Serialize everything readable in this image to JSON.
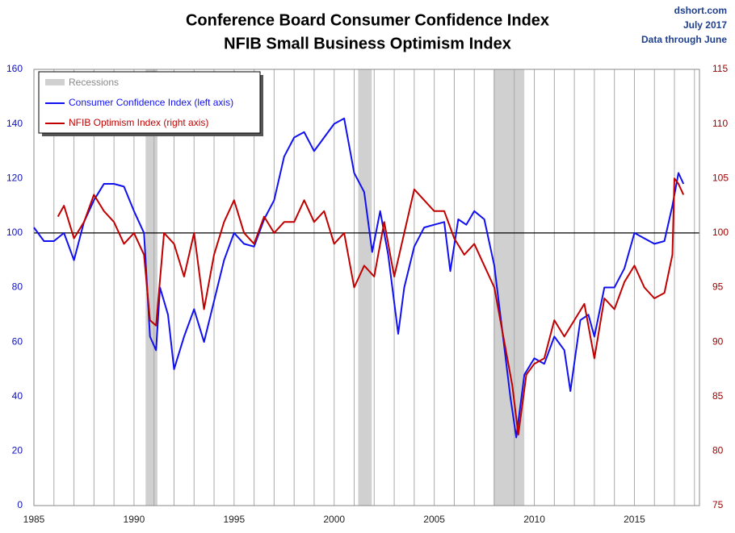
{
  "chart_data": {
    "type": "line",
    "title": "Conference Board Consumer Confidence Index",
    "subtitle": "NFIB Small Business Optimism Index",
    "annotations": [
      "dshort.com",
      "July 2017",
      "Data through June"
    ],
    "xlim": [
      1985,
      2018.25
    ],
    "xticks": [
      1985,
      1990,
      1995,
      2000,
      2005,
      2010,
      2015
    ],
    "xminor": [
      1986,
      1987,
      1988,
      1989,
      1991,
      1992,
      1993,
      1994,
      1996,
      1997,
      1998,
      1999,
      2001,
      2002,
      2003,
      2004,
      2006,
      2007,
      2008,
      2009,
      2011,
      2012,
      2013,
      2014,
      2016,
      2017,
      2018
    ],
    "ylim": [
      0,
      160
    ],
    "yticks": [
      0,
      20,
      40,
      60,
      80,
      100,
      120,
      140,
      160
    ],
    "y2lim": [
      75,
      115
    ],
    "y2ticks": [
      75,
      80,
      85,
      90,
      95,
      100,
      105,
      110,
      115
    ],
    "hline": 100,
    "recession_label": "Recessions",
    "recession_color": "#d0d0d0",
    "recessions": [
      [
        1990.58,
        1991.17
      ],
      [
        2001.2,
        2001.88
      ],
      [
        2007.96,
        2009.5
      ]
    ],
    "legend": "upper left",
    "series": [
      {
        "name": "Consumer Confidence Index (left axis)",
        "color": "#1010f0",
        "x": [
          1985,
          1985.5,
          1986,
          1986.5,
          1987,
          1987.5,
          1988,
          1988.5,
          1989,
          1989.5,
          1990,
          1990.5,
          1990.8,
          1991.1,
          1991.3,
          1991.7,
          1992,
          1992.5,
          1993,
          1993.5,
          1994,
          1994.5,
          1995,
          1995.5,
          1996,
          1996.5,
          1997,
          1997.5,
          1998,
          1998.5,
          1999,
          1999.5,
          2000,
          2000.5,
          2001,
          2001.5,
          2001.9,
          2002.3,
          2002.7,
          2003.2,
          2003.5,
          2004,
          2004.5,
          2005,
          2005.5,
          2005.8,
          2006.2,
          2006.6,
          2007,
          2007.5,
          2008,
          2008.5,
          2008.8,
          2009.1,
          2009.5,
          2010,
          2010.5,
          2011,
          2011.5,
          2011.8,
          2012.3,
          2012.7,
          2013,
          2013.5,
          2014,
          2014.5,
          2015,
          2015.5,
          2016,
          2016.5,
          2016.9,
          2017.2,
          2017.45
        ],
        "values": [
          102,
          97,
          97,
          100,
          90,
          104,
          112,
          118,
          118,
          117,
          108,
          100,
          62,
          57,
          80,
          70,
          50,
          62,
          72,
          60,
          75,
          90,
          100,
          96,
          95,
          105,
          112,
          128,
          135,
          137,
          130,
          135,
          140,
          142,
          122,
          115,
          93,
          108,
          92,
          63,
          80,
          95,
          102,
          103,
          104,
          86,
          105,
          103,
          108,
          105,
          88,
          58,
          40,
          25,
          48,
          54,
          52,
          62,
          57,
          42,
          68,
          70,
          62,
          80,
          80,
          87,
          100,
          98,
          96,
          97,
          110,
          122,
          118
        ]
      },
      {
        "name": "NFIB Optimism Index (right axis)",
        "color": "#c00000",
        "axis": "y2",
        "x": [
          1986.2,
          1986.5,
          1987,
          1987.5,
          1988,
          1988.5,
          1989,
          1989.5,
          1990,
          1990.5,
          1990.8,
          1991.1,
          1991.5,
          1992,
          1992.5,
          1993,
          1993.5,
          1994,
          1994.5,
          1995,
          1995.5,
          1996,
          1996.5,
          1997,
          1997.5,
          1998,
          1998.5,
          1999,
          1999.5,
          2000,
          2000.5,
          2001,
          2001.5,
          2002,
          2002.5,
          2003,
          2003.5,
          2004,
          2004.5,
          2005,
          2005.5,
          2006,
          2006.5,
          2007,
          2007.5,
          2008,
          2008.5,
          2008.9,
          2009.2,
          2009.6,
          2010,
          2010.5,
          2011,
          2011.5,
          2012,
          2012.5,
          2013,
          2013.5,
          2014,
          2014.5,
          2015,
          2015.5,
          2016,
          2016.5,
          2016.9,
          2017,
          2017.2,
          2017.45
        ],
        "values": [
          101.5,
          102.5,
          99.5,
          101,
          103.5,
          102,
          101,
          99,
          100,
          98,
          92,
          91.5,
          100,
          99,
          96,
          100,
          93,
          98,
          101,
          103,
          100,
          99,
          101.5,
          100,
          101,
          101,
          103,
          101,
          102,
          99,
          100,
          95,
          97,
          96,
          101,
          96,
          100,
          104,
          103,
          102,
          102,
          99.5,
          98,
          99,
          97,
          95,
          90,
          86,
          81.5,
          87,
          88,
          88.5,
          92,
          90.5,
          92,
          93.5,
          88.5,
          94,
          93,
          95.5,
          97,
          95,
          94,
          94.5,
          98,
          105,
          104.5,
          103.5
        ]
      }
    ]
  }
}
